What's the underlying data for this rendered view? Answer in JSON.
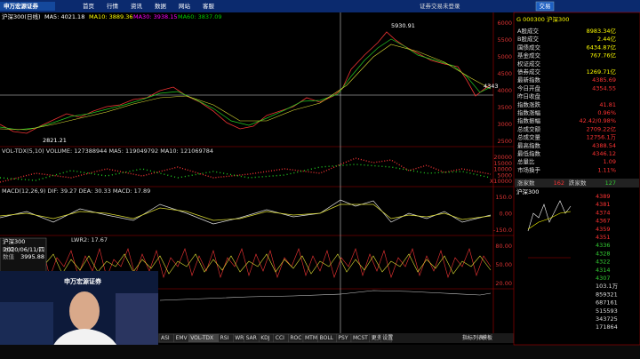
{
  "menu": {
    "logo": "申万宏源证券",
    "items": [
      "首页",
      "行情",
      "资讯",
      "数据",
      "网站",
      "客服"
    ],
    "login": "证券交易未登录",
    "trade": "交易"
  },
  "price_panel": {
    "title": "沪深300(日线)",
    "indicators": [
      "MA5: 4021.18",
      "MA10: 3889.36",
      "MA30: 3938.15",
      "MA60: 3837.09"
    ],
    "axis_labels": [
      "6000",
      "5500",
      "5000",
      "4500",
      "4000",
      "3500",
      "3000",
      "2500"
    ],
    "high_label": "5930.91",
    "low_label": "2821.21",
    "last_label": "4343"
  },
  "volume_panel": {
    "title": "VOL-TDX(5,10) VOLUME: 127388944 MA5: 119049792 MA10: 121069784",
    "axis_labels": [
      "20000",
      "15000",
      "10000",
      "5000",
      "X10000"
    ]
  },
  "macd_panel": {
    "title": "MACD(12,26,9) DIF: 39.27 DEA: 30.33 MACD: 17.89",
    "axis_labels": [
      "150.0",
      "0.00",
      "-150.0"
    ]
  },
  "lwr_panel": {
    "title": "LWR2: 17.67",
    "axis_labels": [
      "80.00",
      "50.00",
      "20.00"
    ]
  },
  "info_box": {
    "title": "沪深300",
    "rows": [
      [
        "时间",
        "2020/06/11/四"
      ],
      [
        "数值",
        "3995.88"
      ]
    ]
  },
  "video": {
    "logo": "申万宏源证券"
  },
  "tabs": [
    "ASI",
    "EMV",
    "VOL-TDX",
    "RSI",
    "WR",
    "SAR",
    "KDJ",
    "CCI",
    "ROC",
    "MTM",
    "BOLL",
    "PSY",
    "MCST",
    "更多",
    "设置"
  ],
  "tab_tools": [
    "指标列表",
    "模板"
  ],
  "quote": {
    "header": "G 000300 沪深300",
    "rows": [
      [
        "A股成交",
        "8983.34亿"
      ],
      [
        "B股成交",
        "2.44亿"
      ],
      [
        "国债成交",
        "6434.87亿"
      ],
      [
        "基金成交",
        "767.76亿"
      ],
      [
        "权证成交",
        ""
      ],
      [
        "债券成交",
        "1269.71亿"
      ],
      [
        "最新指数",
        "4385.69"
      ],
      [
        "今日开盘",
        "4354.55"
      ],
      [
        "昨日收盘",
        ""
      ],
      [
        "指数涨跌",
        "41.81"
      ],
      [
        "指数涨幅",
        "0.96%"
      ],
      [
        "指数振幅",
        "42.42/0.98%"
      ],
      [
        "总成交额",
        "2709.22亿"
      ],
      [
        "总成交量",
        "12756.1万"
      ],
      [
        "最高指数",
        "4388.54"
      ],
      [
        "最低指数",
        "4346.12"
      ],
      [
        "总量比",
        "1.09"
      ],
      [
        "市场换手",
        "1.11%"
      ]
    ],
    "up_label": "涨家数",
    "up": "162",
    "down_label": "跌家数",
    "down": "127",
    "mini_title": "沪深300",
    "mini_axis": [
      "4389",
      "4381",
      "4374",
      "4367",
      "4359",
      "4351",
      "4336",
      "4328",
      "4322",
      "4314",
      "4307",
      "103.1万",
      "859321",
      "687161",
      "515593",
      "343725",
      "171864"
    ]
  }
}
